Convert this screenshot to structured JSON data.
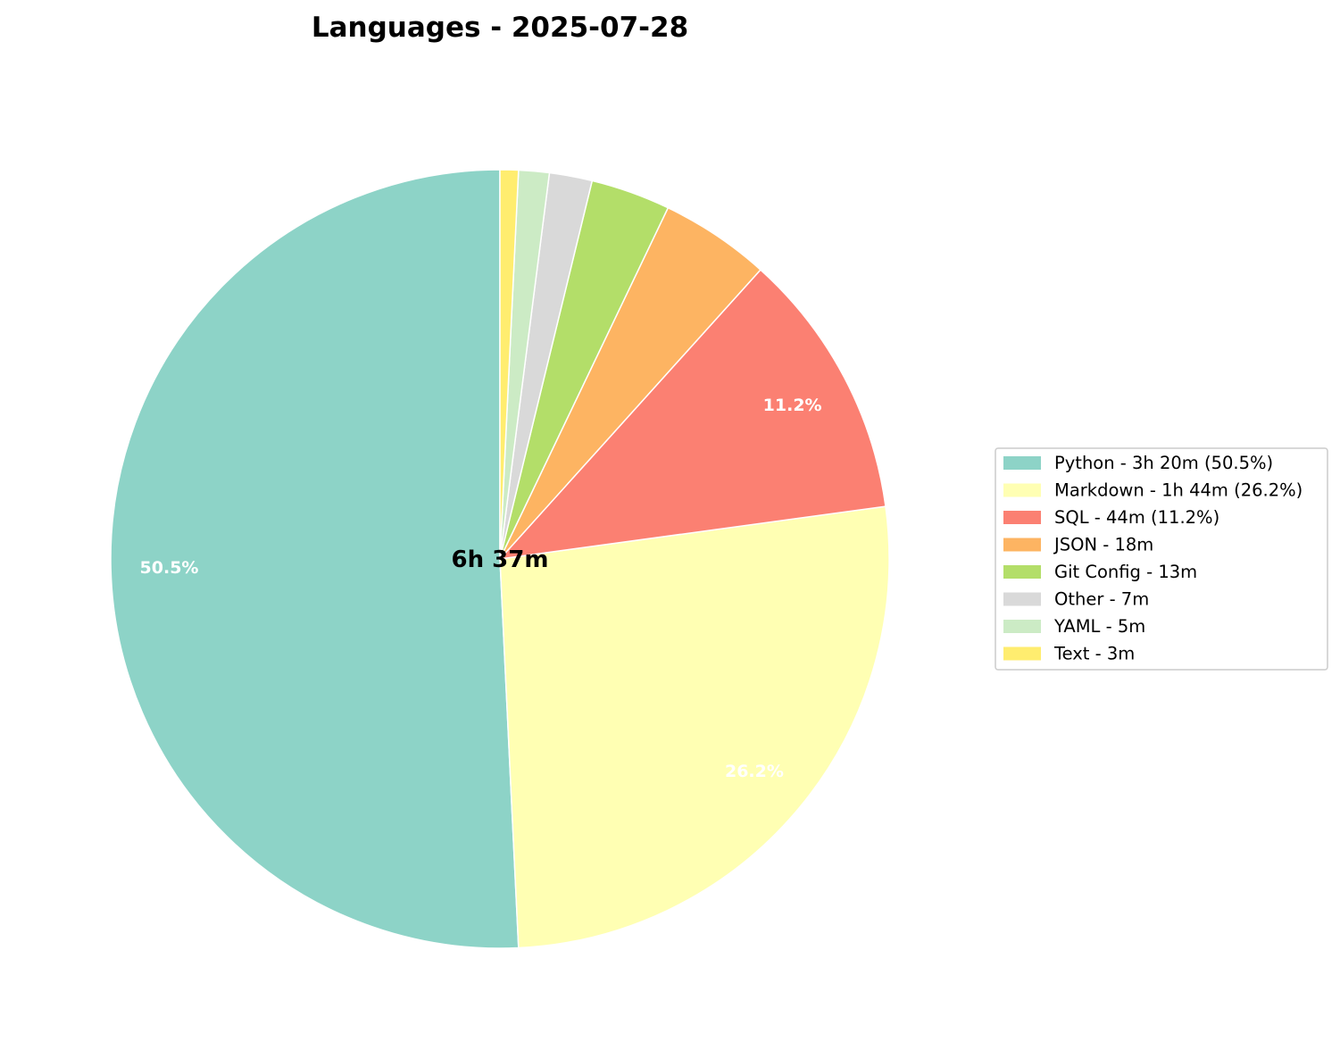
{
  "chart_data": {
    "type": "pie",
    "title": "Languages - 2025-07-28",
    "center_label": "6h 37m",
    "start_angle": "top, counter-clockwise",
    "legend_position": "right",
    "slices": [
      {
        "legend": "Python - 3h 20m (50.5%)",
        "minutes": 200,
        "percent": 50.5,
        "label": "50.5%",
        "color": "#8dd3c7"
      },
      {
        "legend": "Markdown - 1h 44m (26.2%)",
        "minutes": 104,
        "percent": 26.2,
        "label": "26.2%",
        "color": "#ffffb3"
      },
      {
        "legend": "SQL - 44m (11.2%)",
        "minutes": 44,
        "percent": 11.2,
        "label": "11.2%",
        "color": "#fb8072"
      },
      {
        "legend": "JSON - 18m",
        "minutes": 18,
        "percent": 4.5,
        "label": "",
        "color": "#fdb462"
      },
      {
        "legend": "Git Config - 13m",
        "minutes": 13,
        "percent": 3.3,
        "label": "",
        "color": "#b3de69"
      },
      {
        "legend": "Other - 7m",
        "minutes": 7,
        "percent": 1.8,
        "label": "",
        "color": "#d9d9d9"
      },
      {
        "legend": "YAML - 5m",
        "minutes": 5,
        "percent": 1.3,
        "label": "",
        "color": "#ccebc5"
      },
      {
        "legend": "Text - 3m",
        "minutes": 3,
        "percent": 0.8,
        "label": "",
        "color": "#ffed6f"
      }
    ]
  }
}
